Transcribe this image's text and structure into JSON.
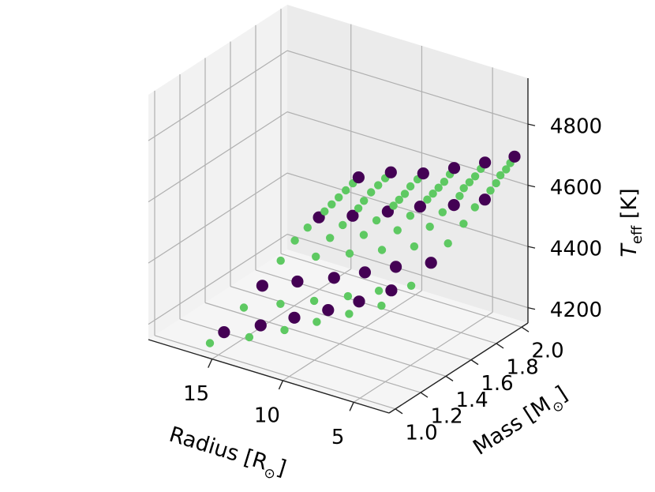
{
  "chart_data": {
    "type": "scatter",
    "projection": "3d",
    "x_axis": {
      "label": "Radius [R",
      "label_suffix": "]",
      "label_symbol": "⊙",
      "ticks": [
        "5",
        "10",
        "15"
      ],
      "range": [
        2.5,
        19.5
      ]
    },
    "y_axis": {
      "label": "Mass [M",
      "label_suffix": "]",
      "label_symbol": "⊙",
      "ticks": [
        "1.0",
        "1.2",
        "1.4",
        "1.6",
        "1.8",
        "2.0"
      ],
      "range": [
        0.95,
        2.05
      ]
    },
    "z_axis": {
      "label_main": "T",
      "label_sub": "eff",
      "label_suffix": " [K]",
      "ticks": [
        "4200",
        "4400",
        "4600",
        "4800"
      ],
      "range": [
        4150,
        4950
      ]
    },
    "grid": true,
    "legend": "none",
    "colors": {
      "large_points": "#440154",
      "small_points": "#5ec962",
      "pane_back": "#ebebeb",
      "pane_left": "#f2f2f2",
      "pane_floor": "#f5f5f5",
      "grid": "#b0b0b0"
    },
    "series": [
      {
        "marker": "large",
        "color": "#440154",
        "points": [
          {
            "r": 5.1,
            "m": 1.0,
            "t": 4870
          },
          {
            "r": 7.9,
            "m": 1.0,
            "t": 4700
          },
          {
            "r": 11.9,
            "m": 1.0,
            "t": 4420
          },
          {
            "r": 14.6,
            "m": 1.0,
            "t": 4230
          },
          {
            "r": 4.6,
            "m": 1.2,
            "t": 4840
          },
          {
            "r": 7.3,
            "m": 1.2,
            "t": 4660
          },
          {
            "r": 11.2,
            "m": 1.2,
            "t": 4390
          },
          {
            "r": 13.8,
            "m": 1.2,
            "t": 4210
          },
          {
            "r": 4.1,
            "m": 1.4,
            "t": 4790
          },
          {
            "r": 6.6,
            "m": 1.4,
            "t": 4630
          },
          {
            "r": 10.4,
            "m": 1.4,
            "t": 4360
          },
          {
            "r": 13.2,
            "m": 1.4,
            "t": 4190
          },
          {
            "r": 3.7,
            "m": 1.6,
            "t": 4760
          },
          {
            "r": 6.1,
            "m": 1.6,
            "t": 4600
          },
          {
            "r": 10.0,
            "m": 1.6,
            "t": 4330
          },
          {
            "r": 12.6,
            "m": 1.6,
            "t": 4170
          },
          {
            "r": 3.3,
            "m": 1.8,
            "t": 4730
          },
          {
            "r": 5.5,
            "m": 1.8,
            "t": 4560
          },
          {
            "r": 9.6,
            "m": 1.8,
            "t": 4300
          },
          {
            "r": 12.2,
            "m": 1.8,
            "t": 4150
          },
          {
            "r": 3.0,
            "m": 2.0,
            "t": 4700
          },
          {
            "r": 5.1,
            "m": 2.0,
            "t": 4530
          },
          {
            "r": 8.9,
            "m": 2.0,
            "t": 4270
          },
          {
            "r": 11.7,
            "m": 2.0,
            "t": 4140
          }
        ]
      },
      {
        "marker": "small",
        "color": "#5ec962",
        "points": [
          {
            "r": 5.5,
            "m": 1.0,
            "t": 4845
          },
          {
            "r": 6.0,
            "m": 1.0,
            "t": 4815
          },
          {
            "r": 6.5,
            "m": 1.0,
            "t": 4785
          },
          {
            "r": 7.0,
            "m": 1.0,
            "t": 4755
          },
          {
            "r": 7.5,
            "m": 1.0,
            "t": 4725
          },
          {
            "r": 8.7,
            "m": 1.0,
            "t": 4655
          },
          {
            "r": 9.6,
            "m": 1.0,
            "t": 4600
          },
          {
            "r": 10.6,
            "m": 1.0,
            "t": 4520
          },
          {
            "r": 13.2,
            "m": 1.0,
            "t": 4330
          },
          {
            "r": 15.6,
            "m": 1.0,
            "t": 4180
          },
          {
            "r": 5.0,
            "m": 1.2,
            "t": 4815
          },
          {
            "r": 5.5,
            "m": 1.2,
            "t": 4785
          },
          {
            "r": 6.0,
            "m": 1.2,
            "t": 4755
          },
          {
            "r": 6.5,
            "m": 1.2,
            "t": 4720
          },
          {
            "r": 6.9,
            "m": 1.2,
            "t": 4690
          },
          {
            "r": 8.0,
            "m": 1.2,
            "t": 4620
          },
          {
            "r": 8.9,
            "m": 1.2,
            "t": 4565
          },
          {
            "r": 9.9,
            "m": 1.2,
            "t": 4490
          },
          {
            "r": 12.4,
            "m": 1.2,
            "t": 4300
          },
          {
            "r": 14.6,
            "m": 1.2,
            "t": 4160
          },
          {
            "r": 4.5,
            "m": 1.4,
            "t": 4765
          },
          {
            "r": 5.0,
            "m": 1.4,
            "t": 4735
          },
          {
            "r": 5.4,
            "m": 1.4,
            "t": 4705
          },
          {
            "r": 5.8,
            "m": 1.4,
            "t": 4680
          },
          {
            "r": 6.2,
            "m": 1.4,
            "t": 4655
          },
          {
            "r": 7.4,
            "m": 1.4,
            "t": 4590
          },
          {
            "r": 8.3,
            "m": 1.4,
            "t": 4530
          },
          {
            "r": 9.3,
            "m": 1.4,
            "t": 4455
          },
          {
            "r": 11.8,
            "m": 1.4,
            "t": 4265
          },
          {
            "r": 13.9,
            "m": 1.4,
            "t": 4140
          },
          {
            "r": 4.0,
            "m": 1.6,
            "t": 4735
          },
          {
            "r": 4.4,
            "m": 1.6,
            "t": 4705
          },
          {
            "r": 4.8,
            "m": 1.6,
            "t": 4680
          },
          {
            "r": 5.2,
            "m": 1.6,
            "t": 4655
          },
          {
            "r": 5.6,
            "m": 1.6,
            "t": 4630
          },
          {
            "r": 6.8,
            "m": 1.6,
            "t": 4560
          },
          {
            "r": 7.7,
            "m": 1.6,
            "t": 4500
          },
          {
            "r": 8.8,
            "m": 1.6,
            "t": 4420
          },
          {
            "r": 11.2,
            "m": 1.6,
            "t": 4235
          },
          {
            "r": 13.4,
            "m": 1.6,
            "t": 4120
          },
          {
            "r": 3.6,
            "m": 1.8,
            "t": 4705
          },
          {
            "r": 4.0,
            "m": 1.8,
            "t": 4675
          },
          {
            "r": 4.4,
            "m": 1.8,
            "t": 4650
          },
          {
            "r": 4.8,
            "m": 1.8,
            "t": 4625
          },
          {
            "r": 5.1,
            "m": 1.8,
            "t": 4595
          },
          {
            "r": 6.3,
            "m": 1.8,
            "t": 4525
          },
          {
            "r": 7.2,
            "m": 1.8,
            "t": 4465
          },
          {
            "r": 8.3,
            "m": 1.8,
            "t": 4385
          },
          {
            "r": 10.8,
            "m": 1.8,
            "t": 4205
          },
          {
            "r": 12.9,
            "m": 1.8,
            "t": 4100
          },
          {
            "r": 3.3,
            "m": 2.0,
            "t": 4675
          },
          {
            "r": 3.6,
            "m": 2.0,
            "t": 4650
          },
          {
            "r": 4.0,
            "m": 2.0,
            "t": 4625
          },
          {
            "r": 4.3,
            "m": 2.0,
            "t": 4595
          },
          {
            "r": 4.7,
            "m": 2.0,
            "t": 4565
          },
          {
            "r": 5.8,
            "m": 2.0,
            "t": 4495
          },
          {
            "r": 6.6,
            "m": 2.0,
            "t": 4430
          },
          {
            "r": 7.7,
            "m": 2.0,
            "t": 4350
          },
          {
            "r": 10.3,
            "m": 2.0,
            "t": 4175
          },
          {
            "r": 12.4,
            "m": 2.0,
            "t": 4080
          }
        ]
      }
    ]
  }
}
